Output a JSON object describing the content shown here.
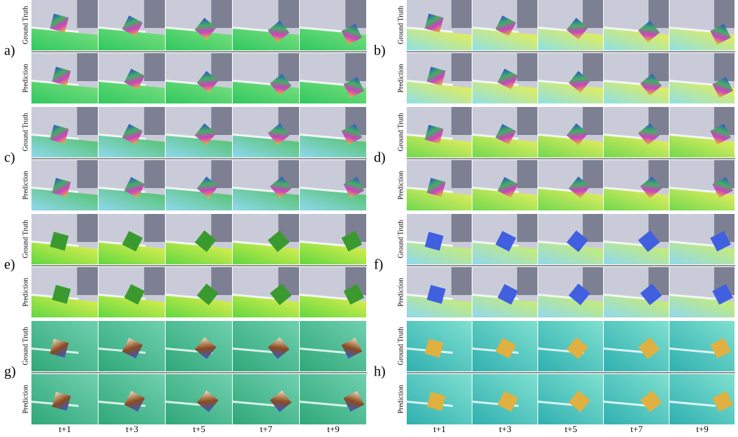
{
  "panels": [
    {
      "label": "a)",
      "rows": [
        "Ground Truth",
        "Prediction"
      ]
    },
    {
      "label": "b)",
      "rows": [
        "Ground Truth",
        "Prediction"
      ]
    },
    {
      "label": "c)",
      "rows": [
        "Ground Truth",
        "Prediction"
      ]
    },
    {
      "label": "d)",
      "rows": [
        "Ground Truth",
        "Prediction"
      ]
    },
    {
      "label": "e)",
      "rows": [
        "Ground Truth",
        "Prediction"
      ]
    },
    {
      "label": "f)",
      "rows": [
        "Ground Truth",
        "Prediction"
      ]
    },
    {
      "label": "g)",
      "rows": [
        "Ground Truth",
        "Prediction"
      ]
    },
    {
      "label": "h)",
      "rows": [
        "Ground Truth",
        "Prediction"
      ]
    }
  ],
  "columns_left": [
    "t+1",
    "t+3",
    "t+5",
    "t+7",
    "t+9"
  ],
  "columns_right": [
    "t+1",
    "t+3",
    "t+5",
    "t+7",
    "t+9"
  ]
}
